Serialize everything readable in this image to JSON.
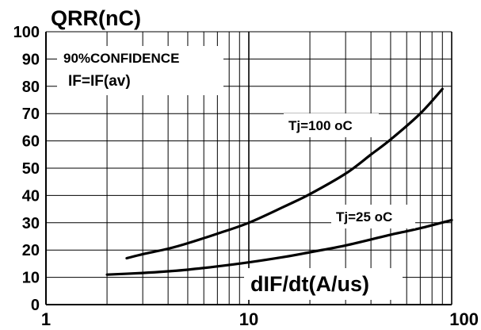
{
  "chart_data": {
    "type": "line",
    "title": "QRR(nC)",
    "xlabel": "dIF/dt(A/us)",
    "ylabel": "",
    "x_scale": "log",
    "xlim": [
      1,
      100
    ],
    "ylim": [
      0,
      100
    ],
    "x_ticks": [
      "1",
      "10",
      "100"
    ],
    "y_ticks": [
      "0",
      "10",
      "20",
      "30",
      "40",
      "50",
      "60",
      "70",
      "80",
      "90",
      "100"
    ],
    "grid": true,
    "annotations": [
      "90%CONFIDENCE",
      "IF=IF(av)"
    ],
    "series": [
      {
        "name": "Tj=100 oC",
        "x": [
          2.5,
          3,
          4,
          5,
          7,
          10,
          15,
          20,
          30,
          40,
          50,
          70,
          90
        ],
        "y": [
          17,
          18.5,
          20.5,
          22.5,
          26,
          30,
          36,
          40.5,
          48,
          55,
          60.5,
          70,
          79
        ]
      },
      {
        "name": "Tj=25 oC",
        "x": [
          2,
          3,
          4,
          5,
          7,
          10,
          15,
          20,
          30,
          50,
          70,
          100
        ],
        "y": [
          11,
          11.6,
          12.2,
          12.8,
          14,
          15.5,
          17.5,
          19.2,
          21.7,
          25.6,
          28,
          31
        ]
      }
    ]
  }
}
